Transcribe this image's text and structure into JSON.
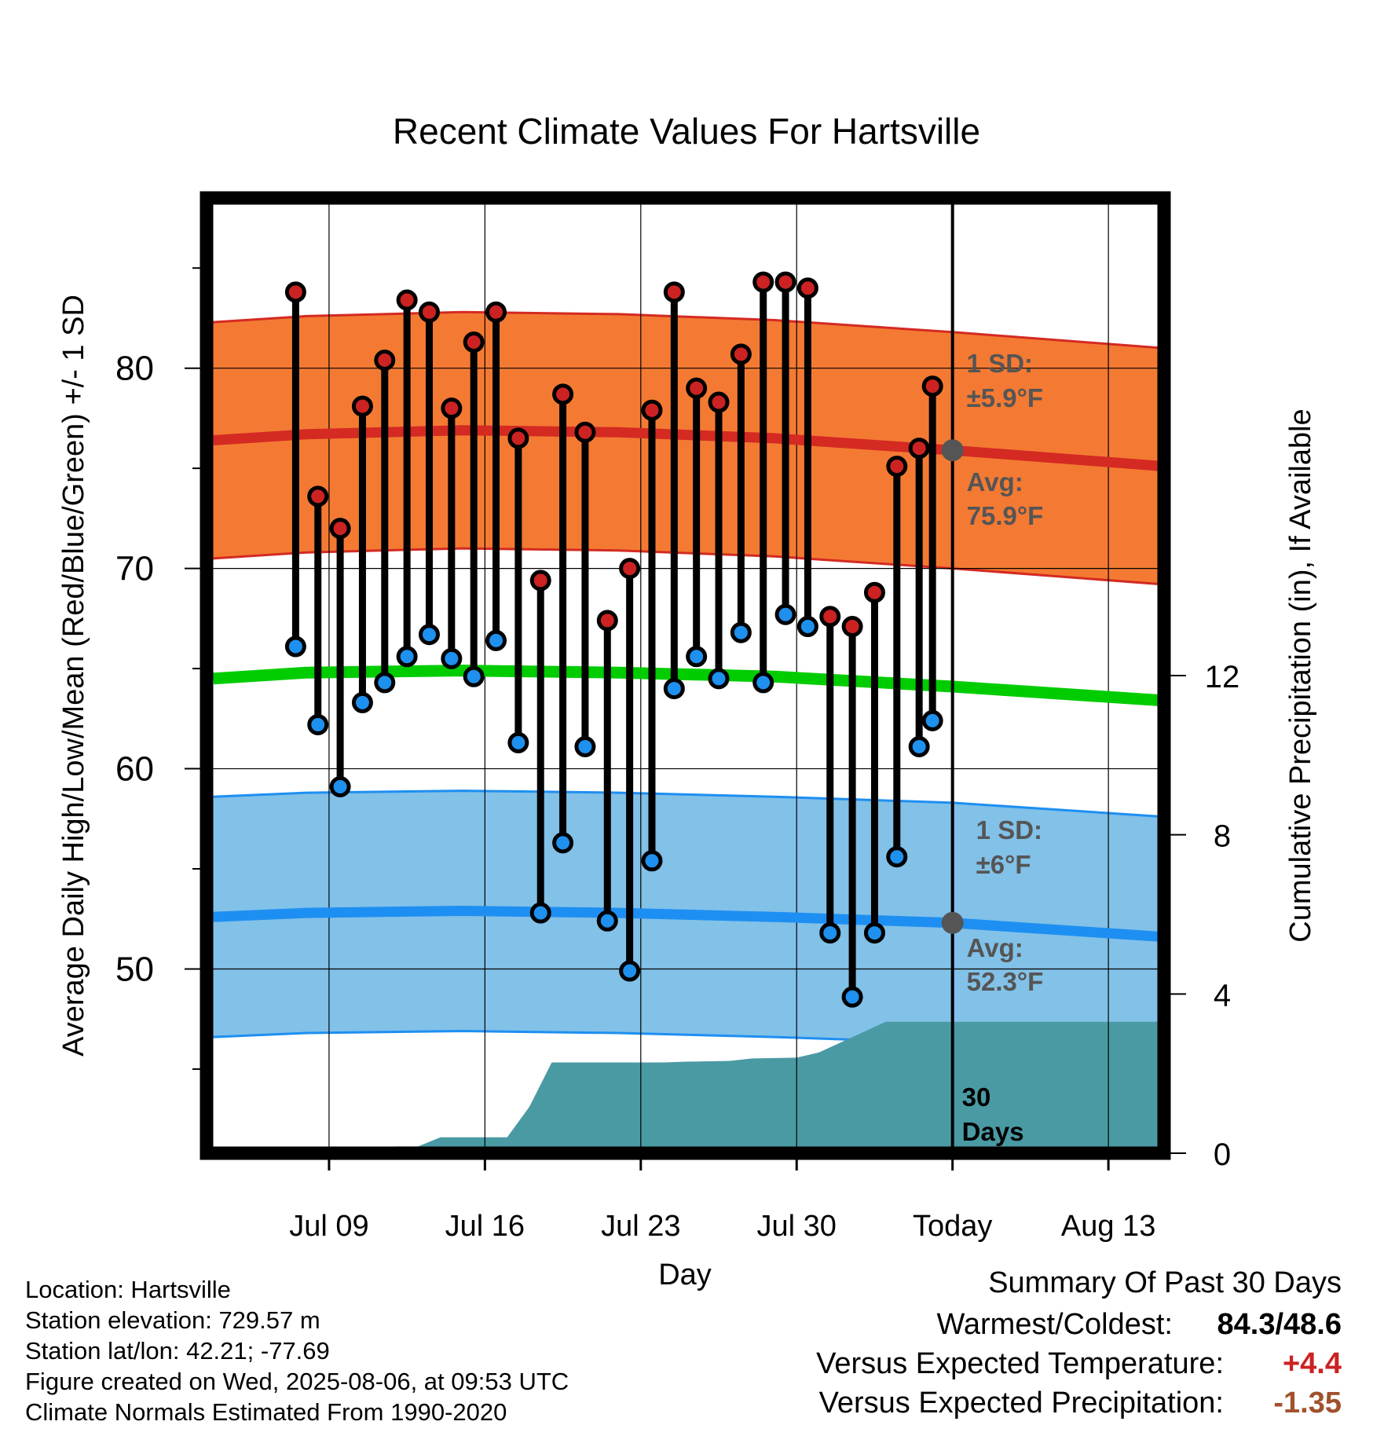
{
  "title": "Recent Climate Values For Hartsville",
  "chart_data": {
    "type": "line",
    "xlabel": "Day",
    "ylabel": "Average Daily High/Low/Mean (Red/Blue/Green) +/- 1 SD",
    "ylabel_right": "Cumulative Precipitation (in), If Available",
    "x_tick_labels": [
      "Jul 09",
      "Jul 16",
      "Jul 23",
      "Jul 30",
      "Today",
      "Aug 13"
    ],
    "y_ticks": [
      50,
      60,
      70,
      80
    ],
    "y_right_ticks": [
      0,
      4,
      8,
      12
    ],
    "xlim_days": [
      -33.5,
      9.5
    ],
    "ylim": [
      40.8,
      88.5
    ],
    "y_right_lim": [
      0,
      24
    ],
    "days_before_today": [
      29,
      28,
      27,
      26,
      25,
      24,
      23,
      22,
      21,
      20,
      19,
      18,
      17,
      16,
      15,
      14,
      13,
      12,
      11,
      10,
      9,
      8,
      7,
      6,
      5,
      4,
      3,
      2,
      1
    ],
    "daily_high": [
      83.8,
      73.6,
      72.0,
      78.1,
      80.4,
      83.4,
      82.8,
      78.0,
      81.3,
      82.8,
      76.5,
      69.4,
      78.7,
      76.8,
      67.4,
      70.0,
      77.9,
      83.8,
      79.0,
      78.3,
      80.7,
      84.3,
      84.3,
      84.0,
      67.6,
      67.1,
      68.8,
      75.1,
      76.0
    ],
    "daily_low": [
      66.1,
      62.2,
      59.1,
      63.3,
      64.3,
      65.6,
      66.7,
      65.5,
      64.6,
      66.4,
      61.3,
      52.8,
      56.3,
      61.1,
      52.4,
      49.9,
      55.4,
      64.0,
      65.6,
      64.5,
      66.8,
      64.3,
      67.7,
      67.1,
      51.8,
      48.6,
      51.8,
      55.6,
      61.1
    ],
    "daily_high_extra": 79.1,
    "daily_low_extra": 62.4,
    "normal_days": [
      -33.2,
      -29,
      -22,
      -15,
      -8,
      0,
      9.5
    ],
    "normal_high": [
      76.4,
      76.7,
      76.9,
      76.8,
      76.5,
      75.9,
      75.1
    ],
    "normal_low": [
      52.6,
      52.8,
      52.9,
      52.8,
      52.6,
      52.3,
      51.6
    ],
    "normal_mean": [
      64.5,
      64.8,
      64.9,
      64.8,
      64.6,
      64.1,
      63.4
    ],
    "sd_high": 5.9,
    "sd_low": 6.0,
    "precip_days": [
      -29,
      -27,
      -25,
      -24,
      -23,
      -22,
      -20,
      -19,
      -18,
      -14,
      -13,
      -12,
      -10,
      -9,
      -7,
      -6,
      -3,
      -2,
      0,
      9.5
    ],
    "precip_cumulative": [
      0,
      0,
      0.17,
      0.17,
      0.4,
      0.4,
      0.4,
      1.17,
      2.28,
      2.28,
      2.28,
      2.3,
      2.32,
      2.38,
      2.4,
      2.53,
      3.3,
      3.3,
      3.3,
      3.3
    ],
    "annotations": {
      "high_sd": "1 SD:",
      "high_sd_value": "±5.9°F",
      "high_avg": "Avg:",
      "high_avg_value": "75.9°F",
      "low_sd": "1 SD:",
      "low_sd_value": "±6°F",
      "low_avg": "Avg:",
      "low_avg_value": "52.3°F",
      "period_number": "30",
      "period_unit": "Days"
    },
    "colors": {
      "high_band": "#f47a33",
      "high_line": "#d42a22",
      "low_band": "#82c1e8",
      "low_line": "#1e8ff2",
      "mean_line": "#00cc00",
      "precip": "#4a9aa4",
      "high_marker": "#cc2222",
      "low_marker": "#1e90ee",
      "annotation": "#555555"
    }
  },
  "info": {
    "location": "Location: Hartsville",
    "elevation": "Station elevation: 729.57 m",
    "latlon": "Station lat/lon: 42.21; -77.69",
    "created": "Figure created on Wed, 2025-08-06, at 09:53 UTC",
    "normals": "Climate Normals Estimated From 1990-2020"
  },
  "summary": {
    "heading": "Summary Of Past 30 Days",
    "extremes_label": "Warmest/Coldest:",
    "extremes_value": "84.3/48.6",
    "temp_label": "Versus Expected Temperature:",
    "temp_value": "+4.4",
    "temp_color": "#cc2222",
    "precip_label": "Versus Expected Precipitation:",
    "precip_value": "-1.35",
    "precip_color": "#a0522d"
  }
}
